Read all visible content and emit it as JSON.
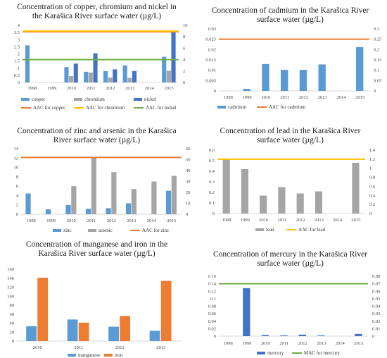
{
  "colors": {
    "blue_light": "#5b9bd5",
    "gray": "#a5a5a5",
    "blue_dark": "#4472c4",
    "orange": "#ed7d31",
    "yellow": "#ffc000",
    "green": "#70ad47",
    "axis": "#d9d9d9"
  },
  "chart_data": [
    {
      "id": "cu_cr_ni",
      "type": "bar",
      "title": [
        "Concentration of copper, chromium and nickel in",
        "the Karašica River surface water (µg/L)"
      ],
      "categories": [
        "1998",
        "1999",
        "2010",
        "2011",
        "2012",
        "2013",
        "2014",
        "2015"
      ],
      "ylim_left": [
        0,
        4
      ],
      "yticks_left": [
        "0",
        "0.5",
        "1",
        "1.5",
        "2",
        "2.5",
        "3",
        "3.5",
        "4"
      ],
      "ylim_right": [
        0,
        10
      ],
      "yticks_right": [
        "0",
        "2",
        "4",
        "6",
        "8",
        "10"
      ],
      "series": [
        {
          "name": "copper",
          "axis": "left",
          "color": "#5b9bd5",
          "values": [
            2.6,
            null,
            1.08,
            0.75,
            0.8,
            1.2,
            null,
            1.8
          ]
        },
        {
          "name": "chromium",
          "axis": "left",
          "color": "#a5a5a5",
          "values": [
            null,
            null,
            0.45,
            0.7,
            0.35,
            0.32,
            null,
            0.82
          ]
        },
        {
          "name": "nickel",
          "axis": "right",
          "color": "#4472c4",
          "values": [
            null,
            null,
            3.3,
            5.1,
            2.3,
            2.0,
            null,
            8.8
          ]
        }
      ],
      "reference_lines": [
        {
          "name": "AAC for copper",
          "axis": "left",
          "value": 3.55,
          "color": "#ed7d31"
        },
        {
          "name": "AAC for chromium",
          "axis": "left",
          "value": 3.6,
          "color": "#ffc000"
        },
        {
          "name": "AAC for nickel",
          "axis": "right",
          "value": 4.0,
          "color": "#70ad47"
        }
      ]
    },
    {
      "id": "cd",
      "type": "bar",
      "title": [
        "Concentration of cadmium in the Karašica River",
        "surface water (µg/L)"
      ],
      "categories": [
        "1998",
        "1999",
        "2010",
        "2011",
        "2012",
        "2013",
        "2014",
        "2015"
      ],
      "ylim_left": [
        0,
        0.03
      ],
      "yticks_left": [
        "0",
        "0.005",
        "0.01",
        "0.015",
        "0.02",
        "0.025",
        "0.03"
      ],
      "ylim_right": [
        0,
        0.3
      ],
      "yticks_right": [
        "0",
        "0.05",
        "0.1",
        "0.15",
        "0.2",
        "0.25",
        "0.3"
      ],
      "series": [
        {
          "name": "cadmium",
          "axis": "left",
          "color": "#5b9bd5",
          "values": [
            null,
            0.001,
            0.013,
            0.0102,
            0.0102,
            0.0128,
            null,
            0.0212
          ]
        }
      ],
      "reference_lines": [
        {
          "name": "AAC for cadmium",
          "axis": "right",
          "value": 0.25,
          "color": "#ed7d31"
        }
      ]
    },
    {
      "id": "zn_as",
      "type": "bar",
      "title": [
        "Concentration of zinc and arsenic in the Karašica",
        "River surface water (µg/L)"
      ],
      "categories": [
        "1998",
        "1999",
        "2010",
        "2011",
        "2012",
        "2013",
        "2014",
        "2015"
      ],
      "ylim_left": [
        0,
        14
      ],
      "yticks_left": [
        "0",
        "2",
        "4",
        "6",
        "8",
        "10",
        "12",
        "14"
      ],
      "ylim_right": [
        0,
        60
      ],
      "yticks_right": [
        "0",
        "10",
        "20",
        "30",
        "40",
        "50",
        "60"
      ],
      "series": [
        {
          "name": "zinc",
          "axis": "right",
          "color": "#5b9bd5",
          "values": [
            19,
            4.5,
            8.5,
            5,
            5.5,
            10,
            null,
            21.5
          ]
        },
        {
          "name": "arsenic",
          "axis": "left",
          "color": "#a5a5a5",
          "values": [
            null,
            null,
            6,
            12.2,
            9,
            5.4,
            7,
            8.2
          ]
        }
      ],
      "reference_lines": [
        {
          "name": "AAC for zinc",
          "axis": "right",
          "value": 52,
          "color": "#ed7d31"
        }
      ]
    },
    {
      "id": "pb",
      "type": "bar",
      "title": [
        "Concentration of lead in the Karašica River",
        "surface water (µg/L)"
      ],
      "categories": [
        "1998",
        "1999",
        "2010",
        "2011",
        "2012",
        "2013",
        "2014",
        "2015"
      ],
      "ylim_left": [
        0,
        0.6
      ],
      "yticks_left": [
        "0",
        "0.1",
        "0.2",
        "0.3",
        "0.4",
        "0.5",
        "0.6"
      ],
      "ylim_right": [
        0,
        1.4
      ],
      "yticks_right": [
        "0",
        "0.2",
        "0.4",
        "0.6",
        "0.8",
        "1",
        "1.2",
        "1.4"
      ],
      "series": [
        {
          "name": "lead",
          "axis": "left",
          "color": "#a5a5a5",
          "values": [
            0.52,
            0.42,
            0.17,
            0.25,
            0.19,
            0.21,
            null,
            0.48
          ]
        }
      ],
      "reference_lines": [
        {
          "name": "AAC for lead",
          "axis": "right",
          "value": 1.2,
          "color": "#ffc000"
        }
      ]
    },
    {
      "id": "mn_fe",
      "type": "bar",
      "title": [
        "Concentration of manganese and iron in the",
        "Karašica River surface water (µg/L)"
      ],
      "categories": [
        "2010",
        "2011",
        "2012",
        "2013"
      ],
      "ylim_left": [
        0,
        160
      ],
      "yticks_left": [
        "0",
        "20",
        "40",
        "60",
        "80",
        "100",
        "120",
        "140",
        "160"
      ],
      "series": [
        {
          "name": "manganese",
          "axis": "left",
          "color": "#5b9bd5",
          "values": [
            33,
            48,
            32,
            23
          ]
        },
        {
          "name": "iron",
          "axis": "left",
          "color": "#ed7d31",
          "values": [
            141,
            41,
            56,
            134
          ]
        }
      ],
      "reference_lines": []
    },
    {
      "id": "hg",
      "type": "bar",
      "title": [
        "Concentration of mercury in the Karašica River",
        "surface water (µg/L)"
      ],
      "categories": [
        "1998",
        "1999",
        "2010",
        "2011",
        "2012",
        "2013",
        "2014",
        "2015"
      ],
      "ylim_left": [
        0,
        0.16
      ],
      "yticks_left": [
        "0",
        "0.02",
        "0.04",
        "0.06",
        "0.08",
        "0.1",
        "0.12",
        "0.14",
        "0.16"
      ],
      "ylim_right": [
        0,
        0.08
      ],
      "yticks_right": [
        "0",
        "0.01",
        "0.02",
        "0.03",
        "0.04",
        "0.05",
        "0.06",
        "0.07",
        "0.08"
      ],
      "series": [
        {
          "name": "mercury",
          "axis": "left",
          "color": "#4472c4",
          "values": [
            null,
            0.128,
            0.003,
            0.002,
            0.004,
            0.002,
            null,
            0.006
          ]
        }
      ],
      "reference_lines": [
        {
          "name": "MAC for mercury",
          "axis": "right",
          "value": 0.07,
          "color": "#70ad47"
        }
      ]
    }
  ]
}
